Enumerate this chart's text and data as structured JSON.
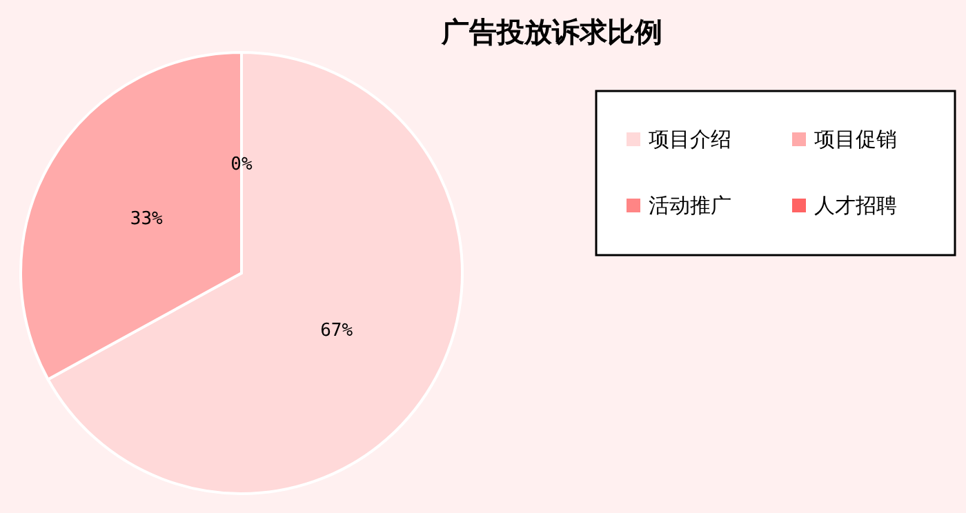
{
  "chart_data": {
    "type": "pie",
    "title": "广告投放诉求比例",
    "categories": [
      "项目介绍",
      "项目促销",
      "活动推广",
      "人才招聘"
    ],
    "values": [
      67,
      33,
      0,
      0
    ],
    "colors": [
      "#ffd9d9",
      "#ffaaaa",
      "#ff8585",
      "#ff6464"
    ],
    "value_labels": [
      "67%",
      "33%",
      "0%",
      null
    ],
    "legend": "top right"
  }
}
